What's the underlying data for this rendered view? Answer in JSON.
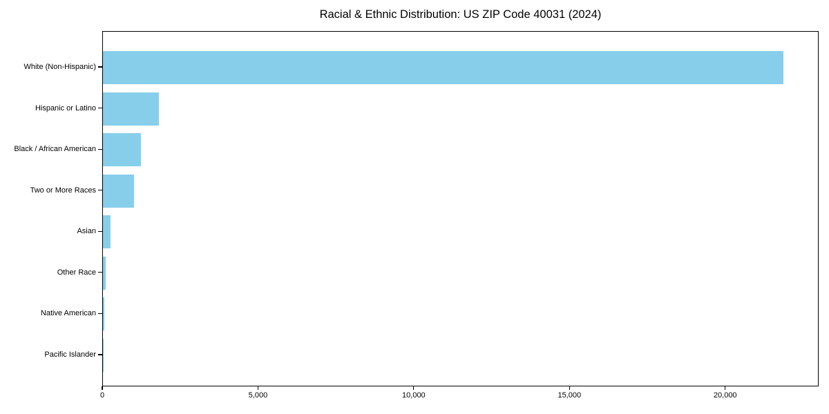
{
  "title": "Racial & Ethnic Distribution: US ZIP Code 40031 (2024)",
  "chart_data": {
    "type": "bar",
    "orientation": "horizontal",
    "title": "Racial & Ethnic Distribution: US ZIP Code 40031 (2024)",
    "categories": [
      "White (Non-Hispanic)",
      "Hispanic or Latino",
      "Black / African American",
      "Two or More Races",
      "Asian",
      "Other Race",
      "Native American",
      "Pacific Islander"
    ],
    "values": [
      21900,
      1800,
      1220,
      1000,
      245,
      95,
      50,
      10
    ],
    "xlabel": "",
    "ylabel": "",
    "xlim": [
      0,
      23000
    ],
    "x_ticks": [
      0,
      5000,
      10000,
      15000,
      20000
    ],
    "x_tick_labels": [
      "0",
      "5,000",
      "10,000",
      "15,000",
      "20,000"
    ],
    "bar_color": "#87CEEB",
    "background_color": "#ffffff",
    "axis_color": "#000000",
    "grid": false,
    "legend": null
  }
}
